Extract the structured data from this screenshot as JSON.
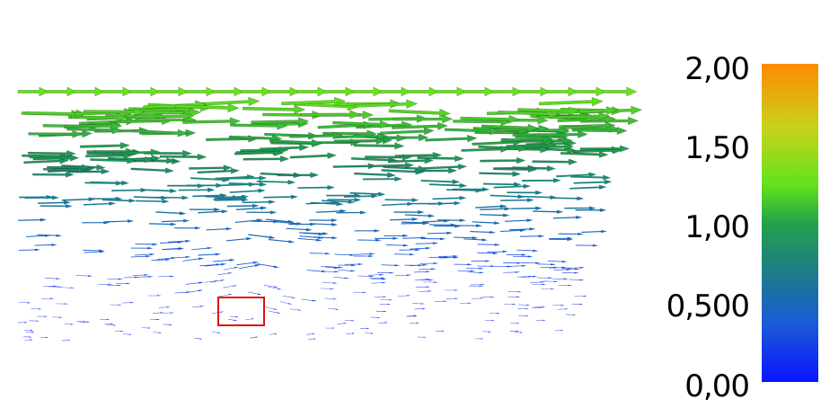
{
  "legend": {
    "ticks": [
      "2,00",
      "1,50",
      "1,00",
      "0,500",
      "0,00"
    ],
    "range": [
      0,
      2
    ],
    "colors": [
      "#0a14ff",
      "#1a5ad8",
      "#1c7e86",
      "#24a24a",
      "#62e21c",
      "#c8d21a",
      "#ff8a00"
    ]
  },
  "highlight_box": {
    "color": "#e01010"
  }
}
